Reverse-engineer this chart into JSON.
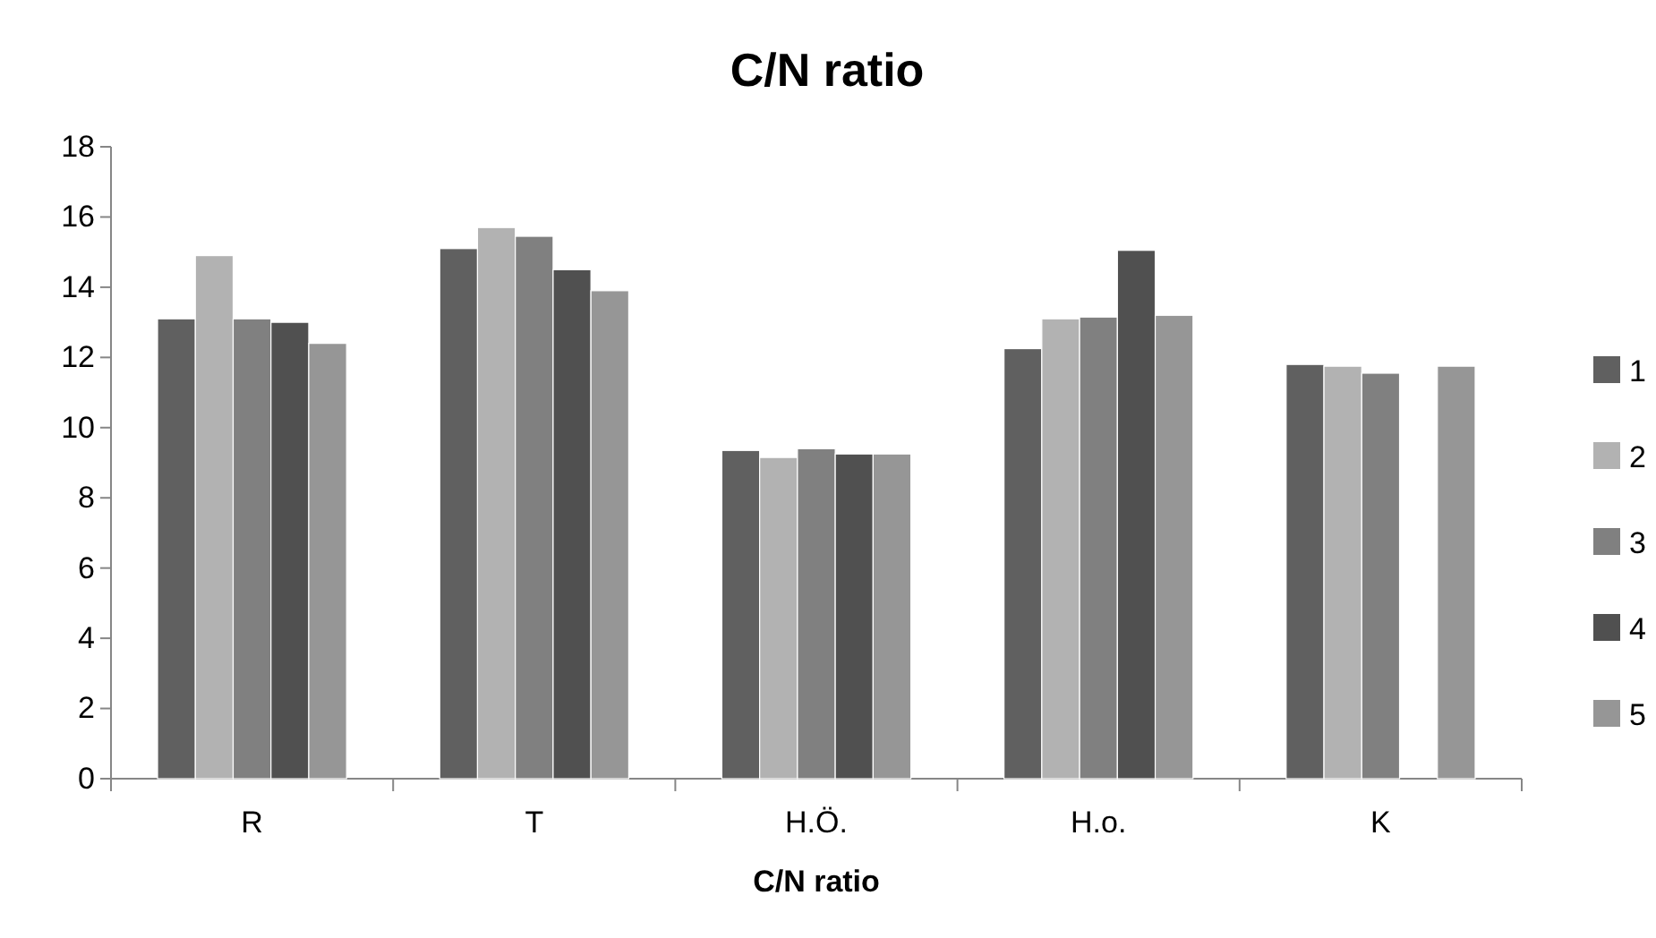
{
  "chart_data": {
    "type": "bar",
    "title": "C/N ratio",
    "xlabel": "C/N ratio",
    "categories": [
      "R",
      "T",
      "H.Ö.",
      "H.o.",
      "K"
    ],
    "series": [
      {
        "name": "1",
        "color": "#606060",
        "values": [
          13.1,
          15.1,
          9.35,
          12.25,
          11.8
        ]
      },
      {
        "name": "2",
        "color": "#b2b2b2",
        "values": [
          14.9,
          15.7,
          9.15,
          13.1,
          11.75
        ]
      },
      {
        "name": "3",
        "color": "#808080",
        "values": [
          13.1,
          15.45,
          9.4,
          13.15,
          11.55
        ]
      },
      {
        "name": "4",
        "color": "#505050",
        "values": [
          13.0,
          14.5,
          9.25,
          15.05,
          null
        ]
      },
      {
        "name": "5",
        "color": "#969696",
        "values": [
          12.4,
          13.9,
          9.25,
          13.2,
          11.75
        ]
      }
    ],
    "ylim": [
      0,
      18
    ],
    "yticks": [
      0,
      2,
      4,
      6,
      8,
      10,
      12,
      14,
      16,
      18
    ],
    "grid": false,
    "legend": "right"
  }
}
